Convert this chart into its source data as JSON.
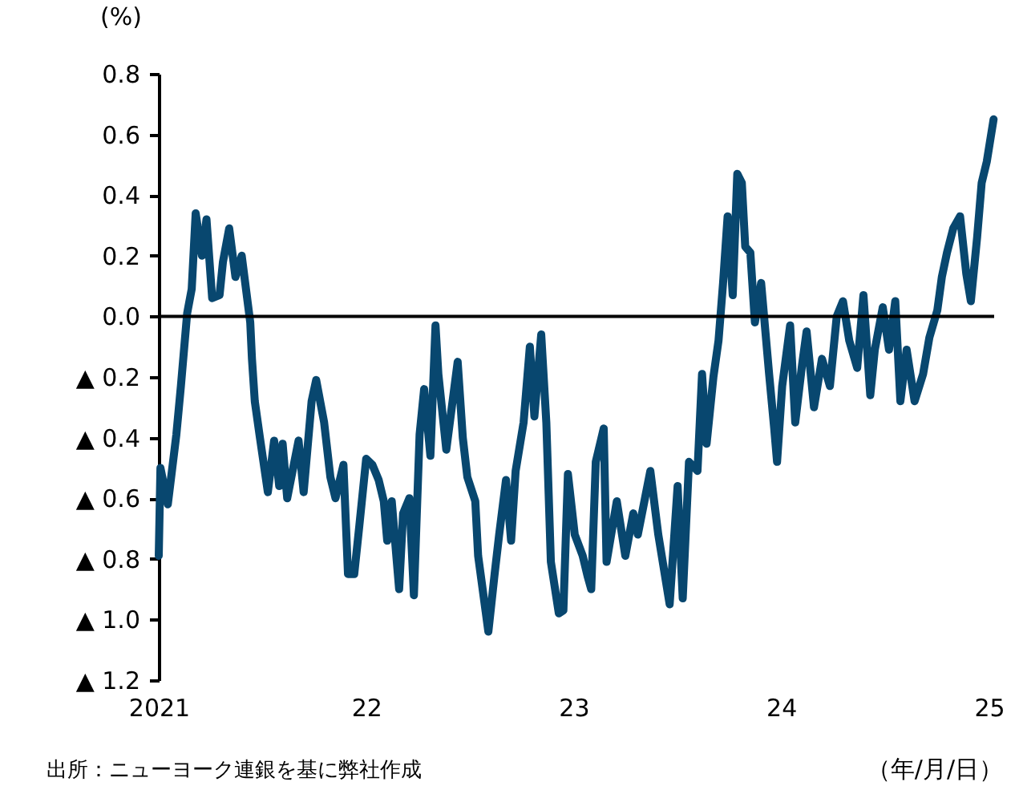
{
  "chart_data": {
    "type": "line",
    "ylabel": "(%)",
    "xlabel": "（年/月/日）",
    "annotations": [
      "出所：ニューヨーク連銀を基に弊社作成"
    ],
    "x": [
      "2021-01-01",
      "2021-01-04",
      "2021-01-17",
      "2021-02-01",
      "2021-02-09",
      "2021-02-20",
      "2021-02-28",
      "2021-03-07",
      "2021-03-18",
      "2021-03-26",
      "2021-04-05",
      "2021-04-18",
      "2021-04-24",
      "2021-05-05",
      "2021-05-16",
      "2021-05-27",
      "2021-06-11",
      "2021-06-14",
      "2021-06-19",
      "2021-06-28",
      "2021-07-12",
      "2021-07-23",
      "2021-08-01",
      "2021-08-07",
      "2021-08-15",
      "2021-09-04",
      "2021-09-13",
      "2021-09-27",
      "2021-10-05",
      "2021-10-19",
      "2021-10-30",
      "2021-11-08",
      "2021-11-22",
      "2021-11-30",
      "2021-12-11",
      "2021-12-20",
      "2022-01-01",
      "2022-01-12",
      "2022-01-23",
      "2022-02-01",
      "2022-02-07",
      "2022-02-15",
      "2022-02-28",
      "2022-03-07",
      "2022-03-18",
      "2022-03-26",
      "2022-04-05",
      "2022-04-13",
      "2022-04-24",
      "2022-05-03",
      "2022-05-08",
      "2022-05-22",
      "2022-06-11",
      "2022-06-20",
      "2022-06-28",
      "2022-07-12",
      "2022-07-17",
      "2022-08-04",
      "2022-08-15",
      "2022-08-23",
      "2022-09-04",
      "2022-09-13",
      "2022-09-21",
      "2022-10-05",
      "2022-10-16",
      "2022-10-24",
      "2022-11-05",
      "2022-11-14",
      "2022-11-22",
      "2022-12-06",
      "2022-12-14",
      "2022-12-22",
      "2023-01-03",
      "2023-01-17",
      "2023-01-26",
      "2023-02-01",
      "2023-02-09",
      "2023-02-23",
      "2023-02-28",
      "2023-03-18",
      "2023-04-02",
      "2023-04-16",
      "2023-04-24",
      "2023-05-16",
      "2023-05-30",
      "2023-06-19",
      "2023-07-03",
      "2023-07-12",
      "2023-07-23",
      "2023-08-07",
      "2023-08-15",
      "2023-08-23",
      "2023-09-04",
      "2023-09-13",
      "2023-09-21",
      "2023-09-29",
      "2023-10-08",
      "2023-10-16",
      "2023-10-24",
      "2023-10-30",
      "2023-11-08",
      "2023-11-16",
      "2023-11-27",
      "2023-12-11",
      "2023-12-20",
      "2023-12-25",
      "2024-01-03",
      "2024-01-17",
      "2024-01-26",
      "2024-02-07",
      "2024-02-15",
      "2024-02-28",
      "2024-03-13",
      "2024-03-27",
      "2024-04-08",
      "2024-04-19",
      "2024-04-30",
      "2024-05-14",
      "2024-05-25",
      "2024-06-06",
      "2024-06-14",
      "2024-06-28",
      "2024-07-09",
      "2024-07-20",
      "2024-07-29",
      "2024-08-09",
      "2024-08-23",
      "2024-09-07",
      "2024-09-18",
      "2024-10-02",
      "2024-10-10",
      "2024-10-19",
      "2024-10-30",
      "2024-11-11",
      "2024-11-22",
      "2024-11-30",
      "2024-12-11",
      "2024-12-19",
      "2024-12-28",
      "2025-01-09"
    ],
    "series": [
      {
        "color": "#08476f",
        "values": [
          -0.79,
          -0.5,
          -0.62,
          -0.39,
          -0.23,
          0.01,
          0.09,
          0.34,
          0.2,
          0.32,
          0.06,
          0.07,
          0.18,
          0.29,
          0.13,
          0.2,
          -0.02,
          -0.14,
          -0.28,
          -0.4,
          -0.58,
          -0.41,
          -0.56,
          -0.42,
          -0.6,
          -0.41,
          -0.58,
          -0.28,
          -0.21,
          -0.35,
          -0.53,
          -0.6,
          -0.49,
          -0.85,
          -0.85,
          -0.69,
          -0.47,
          -0.49,
          -0.54,
          -0.61,
          -0.74,
          -0.61,
          -0.9,
          -0.65,
          -0.6,
          -0.92,
          -0.39,
          -0.24,
          -0.46,
          -0.03,
          -0.19,
          -0.44,
          -0.15,
          -0.4,
          -0.53,
          -0.61,
          -0.79,
          -1.04,
          -0.85,
          -0.72,
          -0.54,
          -0.74,
          -0.51,
          -0.35,
          -0.1,
          -0.33,
          -0.06,
          -0.35,
          -0.81,
          -0.98,
          -0.97,
          -0.52,
          -0.72,
          -0.79,
          -0.86,
          -0.9,
          -0.48,
          -0.37,
          -0.81,
          -0.61,
          -0.79,
          -0.65,
          -0.72,
          -0.51,
          -0.72,
          -0.95,
          -0.56,
          -0.93,
          -0.48,
          -0.51,
          -0.19,
          -0.42,
          -0.2,
          -0.08,
          0.11,
          0.33,
          0.07,
          0.47,
          0.44,
          0.23,
          0.21,
          -0.02,
          0.11,
          -0.19,
          -0.37,
          -0.48,
          -0.23,
          -0.03,
          -0.35,
          -0.16,
          -0.05,
          -0.3,
          -0.14,
          -0.23,
          0.0,
          0.05,
          -0.08,
          -0.17,
          0.07,
          -0.26,
          -0.11,
          0.03,
          -0.11,
          0.05,
          -0.28,
          -0.11,
          -0.28,
          -0.19,
          -0.07,
          0.02,
          0.13,
          0.21,
          0.29,
          0.33,
          0.14,
          0.05,
          0.26,
          0.44,
          0.51,
          0.65
        ]
      }
    ],
    "xlim": [
      "2021-01-01",
      "2025-01-10"
    ],
    "xticks": [
      {
        "value": "2021-01-01",
        "label": "2021"
      },
      {
        "value": "2022-01-01",
        "label": "22"
      },
      {
        "value": "2023-01-01",
        "label": "23"
      },
      {
        "value": "2024-01-01",
        "label": "24"
      },
      {
        "value": "2025-01-01",
        "label": "25"
      }
    ],
    "ylim": [
      -1.2,
      0.8
    ],
    "yticks": [
      {
        "value": -1.2,
        "label": "▲ 1.2"
      },
      {
        "value": -1.0,
        "label": "▲ 1.0"
      },
      {
        "value": -0.8,
        "label": "▲ 0.8"
      },
      {
        "value": -0.6,
        "label": "▲ 0.6"
      },
      {
        "value": -0.4,
        "label": "▲ 0.4"
      },
      {
        "value": -0.2,
        "label": "▲ 0.2"
      },
      {
        "value": 0,
        "label": "0.0"
      },
      {
        "value": 0.2,
        "label": "0.2"
      },
      {
        "value": 0.4,
        "label": "0.4"
      },
      {
        "value": 0.6,
        "label": "0.6"
      },
      {
        "value": 0.8,
        "label": "0.8"
      }
    ],
    "ref_lines": [
      {
        "axis": "y",
        "value": 0,
        "color": "#000000"
      }
    ],
    "grid": false,
    "marker": "none",
    "line_style": "solid"
  }
}
